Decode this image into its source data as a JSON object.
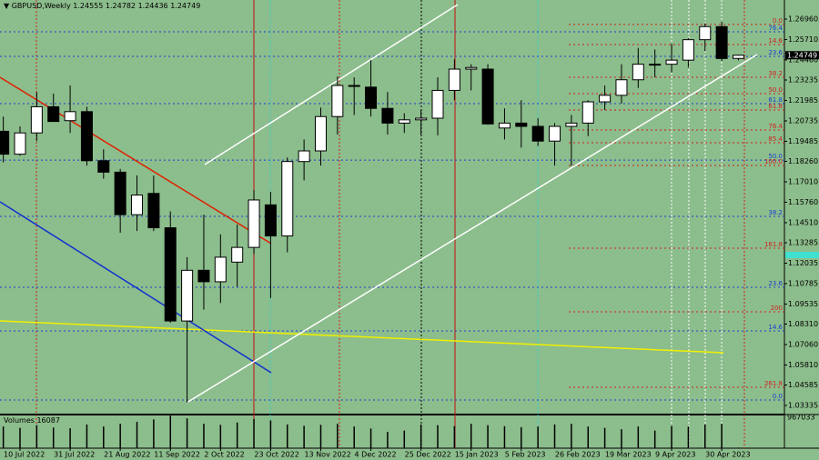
{
  "chart_data": {
    "type": "candlestick",
    "symbol": "GBPUSD,Weekly",
    "categories": [
      null,
      "10 Jul 2022",
      null,
      null,
      "31 Jul 2022",
      null,
      null,
      "21 Aug 2022",
      null,
      null,
      "11 Sep 2022",
      null,
      null,
      "2 Oct 2022",
      null,
      null,
      "23 Oct 2022",
      null,
      null,
      "13 Nov 2022",
      null,
      null,
      "4 Dec 2022",
      null,
      null,
      "25 Dec 2022",
      null,
      null,
      "15 Jan 2023",
      null,
      null,
      "5 Feb 2023",
      null,
      null,
      "26 Feb 2023",
      null,
      null,
      "19 Mar 2023",
      null,
      null,
      "9 Apr 2023",
      null,
      null,
      "30 Apr 2023",
      null
    ],
    "open": [
      1.201,
      1.187,
      1.2,
      1.216,
      1.2075,
      1.213,
      1.183,
      1.176,
      1.15,
      1.163,
      1.142,
      1.085,
      1.116,
      1.109,
      1.121,
      1.13,
      1.156,
      1.137,
      1.1825,
      1.189,
      1.21,
      1.229,
      1.228,
      1.215,
      1.206,
      1.208,
      1.209,
      1.226,
      1.239,
      1.239,
      1.203,
      1.206,
      1.204,
      1.195,
      1.204,
      1.206,
      1.219,
      1.223,
      1.2325,
      1.242,
      1.242,
      1.2445,
      1.257,
      1.265,
      1.24555
    ],
    "high": [
      1.21,
      1.204,
      1.225,
      1.224,
      1.229,
      1.216,
      1.19,
      1.178,
      1.174,
      1.174,
      1.152,
      1.124,
      1.15,
      1.138,
      1.144,
      1.165,
      1.164,
      1.185,
      1.196,
      1.2155,
      1.2345,
      1.234,
      1.2445,
      1.225,
      1.212,
      1.214,
      1.234,
      1.245,
      1.242,
      1.242,
      1.215,
      1.22,
      1.209,
      1.206,
      1.211,
      1.22,
      1.229,
      1.242,
      1.252,
      1.251,
      1.2545,
      1.258,
      1.267,
      1.268,
      1.24782
    ],
    "low": [
      1.182,
      1.186,
      1.195,
      1.207,
      1.2,
      1.18,
      1.172,
      1.139,
      1.14,
      1.14,
      1.084,
      1.035,
      1.092,
      1.096,
      1.106,
      1.126,
      1.099,
      1.127,
      1.171,
      1.18,
      1.199,
      1.211,
      1.21,
      1.199,
      1.2,
      1.199,
      1.1985,
      1.22,
      1.226,
      1.205,
      1.196,
      1.191,
      1.192,
      1.18,
      1.18,
      1.198,
      1.214,
      1.218,
      1.2275,
      1.234,
      1.237,
      1.24,
      1.25,
      1.244,
      1.24436
    ],
    "close": [
      1.187,
      1.2,
      1.216,
      1.207,
      1.213,
      1.183,
      1.176,
      1.15,
      1.162,
      1.142,
      1.085,
      1.116,
      1.109,
      1.124,
      1.13,
      1.159,
      1.137,
      1.1825,
      1.189,
      1.21,
      1.229,
      1.229,
      1.215,
      1.206,
      1.208,
      1.209,
      1.226,
      1.239,
      1.24,
      1.2055,
      1.206,
      1.204,
      1.195,
      1.204,
      1.206,
      1.219,
      1.223,
      1.2325,
      1.242,
      1.2415,
      1.2445,
      1.257,
      1.265,
      1.2455,
      1.24749
    ],
    "ylim": [
      1.02835,
      1.28127
    ],
    "yticks": [
      {
        "value": 1.2696,
        "label": "1.26960"
      },
      {
        "value": 1.2571,
        "label": "1.25710"
      },
      {
        "value": 1.2446,
        "label": "1.24460"
      },
      1.23235,
      1.21985,
      1.20735,
      1.19485,
      {
        "value": 1.1826,
        "label": "1.18260"
      },
      {
        "value": 1.1701,
        "label": "1.17010"
      },
      {
        "value": 1.1576,
        "label": "1.15760"
      },
      {
        "value": 1.1451,
        "label": "1.14510"
      },
      1.13285,
      1.12035,
      1.10785,
      1.09535,
      {
        "value": 1.0831,
        "label": "1.08310"
      },
      {
        "value": 1.0706,
        "label": "1.07060"
      },
      {
        "value": 1.0581,
        "label": "1.05810"
      },
      1.04585,
      1.03335
    ],
    "fib_levels": [
      {
        "label": "76.4",
        "price": 1.2618,
        "color": "#1a3fd0"
      },
      {
        "label": "23.6",
        "price": 1.2468,
        "color": "#1a3fd0"
      },
      {
        "label": "61.8",
        "price": 1.2179,
        "color": "#1a3fd0"
      },
      {
        "label": "50.0",
        "price": 1.1834,
        "color": "#1a3fd0"
      },
      {
        "label": "38.2",
        "price": 1.149,
        "color": "#1a3fd0"
      },
      {
        "label": "23.6",
        "price": 1.1056,
        "color": "#1a3fd0"
      },
      {
        "label": "14.6",
        "price": 1.0789,
        "color": "#1a3fd0"
      },
      {
        "label": "0.0",
        "price": 1.0367,
        "color": "#1a3fd0"
      },
      {
        "label": "0.0",
        "price": 1.2663,
        "color": "#d02020"
      },
      {
        "label": "14.6",
        "price": 1.254,
        "color": "#d02020"
      },
      {
        "label": "38.2",
        "price": 1.234,
        "color": "#d02020"
      },
      {
        "label": "50.0",
        "price": 1.224,
        "color": "#d02020"
      },
      {
        "label": "61.8",
        "price": 1.214,
        "color": "#d02020"
      },
      {
        "label": "76.4",
        "price": 1.2018,
        "color": "#d02020"
      },
      {
        "label": "85.4",
        "price": 1.194,
        "color": "#d02020"
      },
      {
        "label": "100.0",
        "price": 1.1801,
        "color": "#d02020"
      },
      {
        "label": "161.8",
        "price": 1.1295,
        "color": "#d02020"
      },
      {
        "label": "200",
        "price": 1.0906,
        "color": "#d02020"
      },
      {
        "label": "261.8",
        "price": 1.0445,
        "color": "#d02020"
      }
    ],
    "volume_name": "Volumes",
    "volumes": [
      640000,
      600000,
      680000,
      610000,
      590000,
      700000,
      640000,
      720000,
      780000,
      850000,
      960000,
      880000,
      720000,
      690000,
      760000,
      860000,
      820000,
      700000,
      660000,
      690000,
      720000,
      640000,
      580000,
      480000,
      520000,
      700000,
      680000,
      650000,
      720000,
      680000,
      650000,
      620000,
      640000,
      700000,
      720000,
      640000,
      600000,
      560000,
      640000,
      520000,
      660000,
      640000,
      700000,
      720000,
      16087
    ],
    "volume_ylim": [
      0,
      967033
    ],
    "volume_ticks": [
      967033
    ]
  }
}
